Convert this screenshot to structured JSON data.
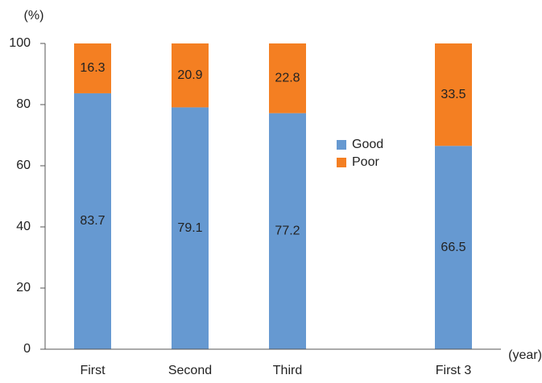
{
  "chart_data": {
    "type": "stacked_bar",
    "y_label": "(%)",
    "x_label": "(year)",
    "categories": [
      "First",
      "Second",
      "Third",
      "First 3"
    ],
    "series": [
      {
        "name": "Good",
        "color": "#6699d1",
        "values": [
          83.7,
          79.1,
          77.2,
          66.5
        ]
      },
      {
        "name": "Poor",
        "color": "#f47f22",
        "values": [
          16.3,
          20.9,
          22.8,
          33.5
        ]
      }
    ],
    "ylim": [
      0,
      100
    ],
    "yticks": [
      0,
      20,
      40,
      60,
      80,
      100
    ],
    "grid": false,
    "legend": "center"
  }
}
